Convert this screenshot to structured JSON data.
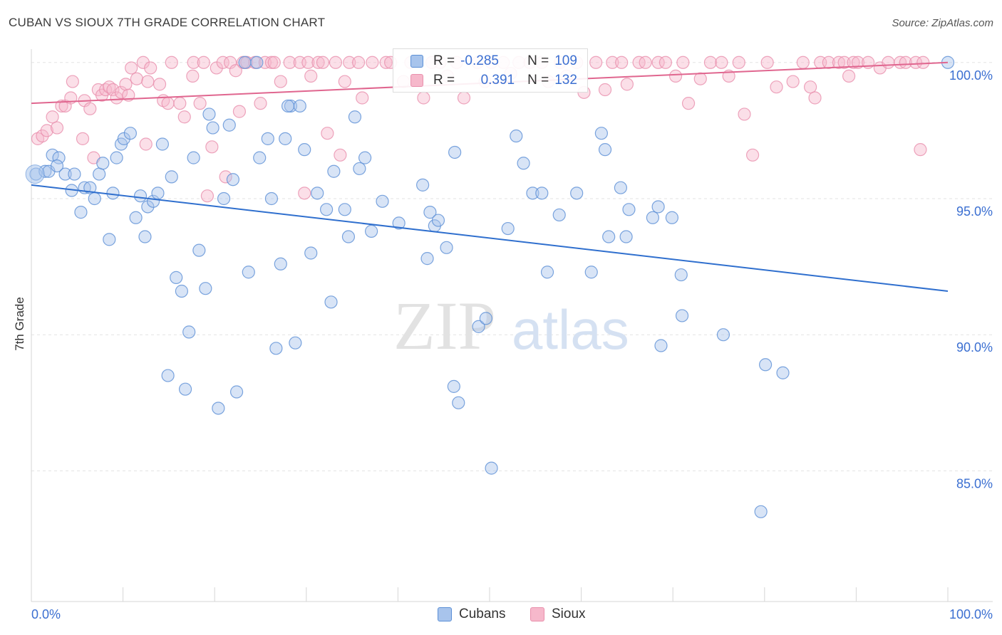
{
  "header": {
    "title": "CUBAN VS SIOUX 7TH GRADE CORRELATION CHART",
    "source": "Source: ZipAtlas.com"
  },
  "watermark": {
    "zip": "ZIP",
    "atlas": "atlas"
  },
  "legend": {
    "rows": [
      {
        "r_label": "R =",
        "r_value": "-0.285",
        "n_label": "N =",
        "n_value": "109"
      },
      {
        "r_label": "R =",
        "r_value": "0.391",
        "n_label": "N =",
        "n_value": "132"
      }
    ]
  },
  "bottom_legend": {
    "cubans": "Cubans",
    "sioux": "Sioux"
  },
  "colors": {
    "cubans_fill": "#a8c4ec",
    "cubans_stroke": "#5b8fd6",
    "cubans_line": "#2f6fce",
    "sioux_fill": "#f6b8cb",
    "sioux_stroke": "#e98fac",
    "sioux_line": "#e0668f",
    "tick_label": "#3b6fd1",
    "grid": "#e3e3e3"
  },
  "chart_data": {
    "type": "scatter",
    "title": "CUBAN VS SIOUX 7TH GRADE CORRELATION CHART",
    "xlabel": "",
    "ylabel": "7th Grade",
    "xlim": [
      0,
      100
    ],
    "ylim": [
      80.2,
      100.7
    ],
    "x_tick_labels": [
      "0.0%",
      "100.0%"
    ],
    "y_ticks": [
      85,
      90,
      95,
      100
    ],
    "y_tick_labels": [
      "85.0%",
      "90.0%",
      "95.0%",
      "100.0%"
    ],
    "grid": "horizontal dashed",
    "legend_placement": "top-center",
    "series": [
      {
        "name": "Cubans",
        "r": -0.285,
        "n": 109,
        "trend": {
          "x": [
            0,
            100
          ],
          "y": [
            95.5,
            91.6
          ]
        },
        "points": [
          [
            0.5,
            95.9
          ],
          [
            1.5,
            96.0
          ],
          [
            1.9,
            96.0
          ],
          [
            2.3,
            96.6
          ],
          [
            3.0,
            96.5
          ],
          [
            2.8,
            96.2
          ],
          [
            3.7,
            95.9
          ],
          [
            4.4,
            95.3
          ],
          [
            4.7,
            95.9
          ],
          [
            5.4,
            94.5
          ],
          [
            5.8,
            95.4
          ],
          [
            6.4,
            95.4
          ],
          [
            6.9,
            95.0
          ],
          [
            7.4,
            95.9
          ],
          [
            7.8,
            96.3
          ],
          [
            8.5,
            93.5
          ],
          [
            8.9,
            95.2
          ],
          [
            9.3,
            96.5
          ],
          [
            9.8,
            97.0
          ],
          [
            10.1,
            97.2
          ],
          [
            10.8,
            97.4
          ],
          [
            11.4,
            94.3
          ],
          [
            11.9,
            95.1
          ],
          [
            12.4,
            93.6
          ],
          [
            12.7,
            94.7
          ],
          [
            13.3,
            94.9
          ],
          [
            13.8,
            95.2
          ],
          [
            14.3,
            97.0
          ],
          [
            14.9,
            88.5
          ],
          [
            15.3,
            95.8
          ],
          [
            15.8,
            92.1
          ],
          [
            16.4,
            91.6
          ],
          [
            16.8,
            88.0
          ],
          [
            17.2,
            90.1
          ],
          [
            17.7,
            96.5
          ],
          [
            18.3,
            93.1
          ],
          [
            19.0,
            91.7
          ],
          [
            19.4,
            98.1
          ],
          [
            19.8,
            97.6
          ],
          [
            20.4,
            87.3
          ],
          [
            21.0,
            95.0
          ],
          [
            21.6,
            97.7
          ],
          [
            22.0,
            95.7
          ],
          [
            22.4,
            87.9
          ],
          [
            23.3,
            100.0
          ],
          [
            23.7,
            92.3
          ],
          [
            24.6,
            100.0
          ],
          [
            24.9,
            96.5
          ],
          [
            25.8,
            97.2
          ],
          [
            26.2,
            95.0
          ],
          [
            26.7,
            89.5
          ],
          [
            27.2,
            92.6
          ],
          [
            27.7,
            97.2
          ],
          [
            28.3,
            98.4
          ],
          [
            28.8,
            89.7
          ],
          [
            29.3,
            98.4
          ],
          [
            29.8,
            96.8
          ],
          [
            30.5,
            93.0
          ],
          [
            31.2,
            95.2
          ],
          [
            32.2,
            94.6
          ],
          [
            32.7,
            91.2
          ],
          [
            33.0,
            96.0
          ],
          [
            34.2,
            94.6
          ],
          [
            34.6,
            93.6
          ],
          [
            35.3,
            98.0
          ],
          [
            35.8,
            96.1
          ],
          [
            36.4,
            96.5
          ],
          [
            37.1,
            93.8
          ],
          [
            38.3,
            94.9
          ],
          [
            40.1,
            94.1
          ],
          [
            42.7,
            95.5
          ],
          [
            43.2,
            92.8
          ],
          [
            43.5,
            94.5
          ],
          [
            44.0,
            94.0
          ],
          [
            44.4,
            94.2
          ],
          [
            45.3,
            93.2
          ],
          [
            46.2,
            96.7
          ],
          [
            46.1,
            88.1
          ],
          [
            46.6,
            87.5
          ],
          [
            48.8,
            90.3
          ],
          [
            49.6,
            90.6
          ],
          [
            50.2,
            85.1
          ],
          [
            52.0,
            93.9
          ],
          [
            52.9,
            97.3
          ],
          [
            53.7,
            96.3
          ],
          [
            54.7,
            95.2
          ],
          [
            55.7,
            95.2
          ],
          [
            56.3,
            92.3
          ],
          [
            57.6,
            94.4
          ],
          [
            59.5,
            95.2
          ],
          [
            61.1,
            92.3
          ],
          [
            62.2,
            97.4
          ],
          [
            62.6,
            96.8
          ],
          [
            63.0,
            93.6
          ],
          [
            64.3,
            95.4
          ],
          [
            64.9,
            93.6
          ],
          [
            65.2,
            94.6
          ],
          [
            67.8,
            94.3
          ],
          [
            68.4,
            94.7
          ],
          [
            68.7,
            89.6
          ],
          [
            69.9,
            94.3
          ],
          [
            70.9,
            92.2
          ],
          [
            71.0,
            90.7
          ],
          [
            75.5,
            90.0
          ],
          [
            79.6,
            83.5
          ],
          [
            80.1,
            88.9
          ],
          [
            82.0,
            88.6
          ],
          [
            100.0,
            100.0
          ],
          [
            28.0,
            98.4
          ]
        ]
      },
      {
        "name": "Sioux",
        "r": 0.391,
        "n": 132,
        "trend": {
          "x": [
            0,
            100
          ],
          "y": [
            98.5,
            100.0
          ]
        },
        "points": [
          [
            0.7,
            97.2
          ],
          [
            1.2,
            97.3
          ],
          [
            1.7,
            97.5
          ],
          [
            2.3,
            98.0
          ],
          [
            2.8,
            97.6
          ],
          [
            3.3,
            98.4
          ],
          [
            3.7,
            98.4
          ],
          [
            4.3,
            98.7
          ],
          [
            4.5,
            99.3
          ],
          [
            5.6,
            97.2
          ],
          [
            5.8,
            98.6
          ],
          [
            6.4,
            98.3
          ],
          [
            6.8,
            96.5
          ],
          [
            7.3,
            99.0
          ],
          [
            7.7,
            98.8
          ],
          [
            8.1,
            99.0
          ],
          [
            8.5,
            99.1
          ],
          [
            8.9,
            99.0
          ],
          [
            9.3,
            98.7
          ],
          [
            9.8,
            98.9
          ],
          [
            10.3,
            99.2
          ],
          [
            10.6,
            98.8
          ],
          [
            10.9,
            99.8
          ],
          [
            11.5,
            99.4
          ],
          [
            12.2,
            100.0
          ],
          [
            12.5,
            97.0
          ],
          [
            12.7,
            99.3
          ],
          [
            13.0,
            99.8
          ],
          [
            14.0,
            99.2
          ],
          [
            14.4,
            98.6
          ],
          [
            14.9,
            98.5
          ],
          [
            15.3,
            100.0
          ],
          [
            16.2,
            98.5
          ],
          [
            16.7,
            98.0
          ],
          [
            17.6,
            99.5
          ],
          [
            17.7,
            100.0
          ],
          [
            18.4,
            98.5
          ],
          [
            18.8,
            100.0
          ],
          [
            19.2,
            95.1
          ],
          [
            19.7,
            96.9
          ],
          [
            20.2,
            99.8
          ],
          [
            20.9,
            100.0
          ],
          [
            21.2,
            95.8
          ],
          [
            21.7,
            100.0
          ],
          [
            22.3,
            99.7
          ],
          [
            22.7,
            98.2
          ],
          [
            23.1,
            100.0
          ],
          [
            23.5,
            100.0
          ],
          [
            24.4,
            100.0
          ],
          [
            25.0,
            98.5
          ],
          [
            25.5,
            100.0
          ],
          [
            26.2,
            100.0
          ],
          [
            26.5,
            100.0
          ],
          [
            27.2,
            99.3
          ],
          [
            28.2,
            100.0
          ],
          [
            29.3,
            100.0
          ],
          [
            29.8,
            95.2
          ],
          [
            30.2,
            100.0
          ],
          [
            30.5,
            99.5
          ],
          [
            31.3,
            100.0
          ],
          [
            31.8,
            100.0
          ],
          [
            32.3,
            97.4
          ],
          [
            33.2,
            100.0
          ],
          [
            33.7,
            96.6
          ],
          [
            34.2,
            99.3
          ],
          [
            34.7,
            100.0
          ],
          [
            35.7,
            100.0
          ],
          [
            36.1,
            98.7
          ],
          [
            37.2,
            100.0
          ],
          [
            38.7,
            100.0
          ],
          [
            39.2,
            100.0
          ],
          [
            40.6,
            99.3
          ],
          [
            41.4,
            100.0
          ],
          [
            42.8,
            98.7
          ],
          [
            43.7,
            100.0
          ],
          [
            44.6,
            100.0
          ],
          [
            45.4,
            99.5
          ],
          [
            46.4,
            100.0
          ],
          [
            47.2,
            98.7
          ],
          [
            48.7,
            100.0
          ],
          [
            49.5,
            99.3
          ],
          [
            50.2,
            100.0
          ],
          [
            51.5,
            100.0
          ],
          [
            52.3,
            99.6
          ],
          [
            53.2,
            100.0
          ],
          [
            54.4,
            100.0
          ],
          [
            55.7,
            100.0
          ],
          [
            56.4,
            99.3
          ],
          [
            57.7,
            100.0
          ],
          [
            58.4,
            99.5
          ],
          [
            59.5,
            100.0
          ],
          [
            60.3,
            98.9
          ],
          [
            61.6,
            100.0
          ],
          [
            62.6,
            99.0
          ],
          [
            63.4,
            100.0
          ],
          [
            64.4,
            100.0
          ],
          [
            65.0,
            99.2
          ],
          [
            66.3,
            100.0
          ],
          [
            67.0,
            100.0
          ],
          [
            68.4,
            100.0
          ],
          [
            69.2,
            100.0
          ],
          [
            70.3,
            99.5
          ],
          [
            71.1,
            100.0
          ],
          [
            71.7,
            98.5
          ],
          [
            73.0,
            99.4
          ],
          [
            74.1,
            100.0
          ],
          [
            75.3,
            100.0
          ],
          [
            76.1,
            99.5
          ],
          [
            77.2,
            100.0
          ],
          [
            77.8,
            98.1
          ],
          [
            78.7,
            96.6
          ],
          [
            80.3,
            100.0
          ],
          [
            81.3,
            99.1
          ],
          [
            83.1,
            99.3
          ],
          [
            84.2,
            100.0
          ],
          [
            85.0,
            99.1
          ],
          [
            85.5,
            98.7
          ],
          [
            86.1,
            100.0
          ],
          [
            87.0,
            100.0
          ],
          [
            88.1,
            100.0
          ],
          [
            88.7,
            100.0
          ],
          [
            89.2,
            99.5
          ],
          [
            89.7,
            100.0
          ],
          [
            90.2,
            100.0
          ],
          [
            91.3,
            100.0
          ],
          [
            92.6,
            99.8
          ],
          [
            93.5,
            100.0
          ],
          [
            94.8,
            100.0
          ],
          [
            95.4,
            100.0
          ],
          [
            96.5,
            100.0
          ],
          [
            97.0,
            96.8
          ],
          [
            97.3,
            100.0
          ]
        ]
      }
    ]
  }
}
